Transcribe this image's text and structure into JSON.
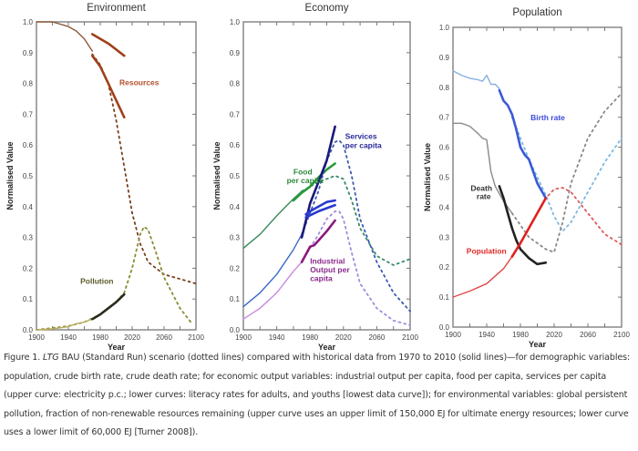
{
  "chart_data": [
    {
      "type": "line",
      "title": "Environment",
      "xlabel": "Year",
      "ylabel": "Normalised Value",
      "xlim": [
        1900,
        2100
      ],
      "ylim": [
        0,
        1.0
      ],
      "xticks": [
        "1900",
        "1940",
        "1980",
        "2020",
        "2060",
        "2100"
      ],
      "yticks": [
        "0.0",
        "0.1",
        "0.2",
        "0.3",
        "0.4",
        "0.5",
        "0.6",
        "0.7",
        "0.8",
        "0.9",
        "1.0"
      ],
      "annotations": [
        {
          "text": "Resources",
          "color": "#b3502a",
          "x": 2004,
          "y": 0.795
        },
        {
          "text": "Pollution",
          "color": "#5a5a2a",
          "x": 1955,
          "y": 0.15
        }
      ],
      "series": [
        {
          "name": "Resources model history (thin)",
          "style": "thin",
          "color": "#8a5a3a",
          "x": [
            1900,
            1920,
            1940,
            1950,
            1960,
            1970
          ],
          "y": [
            1.0,
            1.0,
            0.985,
            0.97,
            0.945,
            0.905
          ]
        },
        {
          "name": "Resources upper (150,000 EJ) model",
          "style": "dotted",
          "color": "#a05a30",
          "x": [
            1970,
            1980,
            1990,
            2000,
            2010
          ],
          "y": [
            0.96,
            0.945,
            0.93,
            0.91,
            0.89
          ]
        },
        {
          "name": "Resources lower (60,000 EJ) model",
          "style": "dotted",
          "color": "#7a4020",
          "x": [
            1970,
            1980,
            1990,
            2000,
            2010,
            2020,
            2030,
            2040,
            2060,
            2080,
            2100
          ],
          "y": [
            0.895,
            0.86,
            0.8,
            0.68,
            0.53,
            0.38,
            0.28,
            0.22,
            0.18,
            0.165,
            0.15
          ]
        },
        {
          "name": "Resources upper data",
          "style": "solid",
          "color": "#a0401a",
          "x": [
            1970,
            1980,
            1990,
            2000,
            2010
          ],
          "y": [
            0.96,
            0.945,
            0.93,
            0.91,
            0.89
          ]
        },
        {
          "name": "Resources lower data",
          "style": "solid",
          "color": "#a0401a",
          "x": [
            1970,
            1980,
            1990,
            2000,
            2010
          ],
          "y": [
            0.89,
            0.855,
            0.8,
            0.745,
            0.69
          ]
        },
        {
          "name": "Pollution model",
          "style": "dotted",
          "color": "#8a8a30",
          "x": [
            1900,
            1940,
            1960,
            1980,
            2000,
            2010,
            2020,
            2030,
            2035,
            2040,
            2050,
            2060,
            2080,
            2095
          ],
          "y": [
            0.0,
            0.012,
            0.025,
            0.05,
            0.09,
            0.12,
            0.2,
            0.31,
            0.335,
            0.325,
            0.25,
            0.17,
            0.07,
            0.02
          ]
        },
        {
          "name": "Pollution history (thin)",
          "style": "thin",
          "color": "#b9b060",
          "x": [
            1900,
            1920,
            1940,
            1950,
            1960,
            1970
          ],
          "y": [
            0.0,
            0.003,
            0.01,
            0.02,
            0.025,
            0.035
          ]
        },
        {
          "name": "Pollution data",
          "style": "solid",
          "color": "#2a2a1a",
          "x": [
            1970,
            1980,
            1990,
            2000,
            2010
          ],
          "y": [
            0.035,
            0.05,
            0.07,
            0.09,
            0.115
          ]
        }
      ]
    },
    {
      "type": "line",
      "title": "Economy",
      "xlabel": "Year",
      "ylabel": "Normalised Value",
      "xlim": [
        1900,
        2100
      ],
      "ylim": [
        0,
        1.0
      ],
      "xticks": [
        "1900",
        "1940",
        "1980",
        "2020",
        "2060",
        "2100"
      ],
      "yticks": [
        "0.0",
        "0.1",
        "0.2",
        "0.3",
        "0.4",
        "0.5",
        "0.6",
        "0.7",
        "0.8",
        "0.9",
        "1.0"
      ],
      "annotations": [
        {
          "text": "Services",
          "color": "#2a2a9a",
          "x": 2022,
          "y": 0.62
        },
        {
          "text": "per capita",
          "color": "#2a2a9a",
          "x": 2022,
          "y": 0.59
        },
        {
          "text": "Food",
          "color": "#2a8a3a",
          "x": 1960,
          "y": 0.505
        },
        {
          "text": "per capita",
          "color": "#2a8a3a",
          "x": 1952,
          "y": 0.477
        },
        {
          "text": "Industrial",
          "color": "#8a2a8a",
          "x": 1980,
          "y": 0.215
        },
        {
          "text": "Output per",
          "color": "#8a2a8a",
          "x": 1980,
          "y": 0.187
        },
        {
          "text": "capita",
          "color": "#8a2a8a",
          "x": 1980,
          "y": 0.159
        }
      ],
      "series": [
        {
          "name": "Food per capita history",
          "style": "thin",
          "color": "#3a8a5a",
          "x": [
            1900,
            1920,
            1940,
            1960,
            1970
          ],
          "y": [
            0.265,
            0.31,
            0.37,
            0.425,
            0.45
          ]
        },
        {
          "name": "Food per capita model",
          "style": "dotted",
          "color": "#3a8a6a",
          "x": [
            1970,
            1990,
            2010,
            2020,
            2030,
            2040,
            2060,
            2080,
            2100
          ],
          "y": [
            0.45,
            0.48,
            0.5,
            0.49,
            0.42,
            0.33,
            0.24,
            0.21,
            0.23
          ]
        },
        {
          "name": "Food per capita data",
          "style": "solid",
          "color": "#2a9a3a",
          "x": [
            1960,
            1970,
            1980,
            1990,
            2000,
            2010
          ],
          "y": [
            0.42,
            0.445,
            0.465,
            0.495,
            0.52,
            0.54
          ]
        },
        {
          "name": "Services per capita history",
          "style": "thin",
          "color": "#3a6ac8",
          "x": [
            1900,
            1920,
            1940,
            1960,
            1970
          ],
          "y": [
            0.075,
            0.12,
            0.18,
            0.26,
            0.31
          ]
        },
        {
          "name": "Services per capita model",
          "style": "dotted",
          "color": "#3a5ab0",
          "x": [
            1970,
            1990,
            2000,
            2010,
            2015,
            2020,
            2030,
            2040,
            2060,
            2080,
            2100
          ],
          "y": [
            0.31,
            0.45,
            0.55,
            0.61,
            0.615,
            0.6,
            0.5,
            0.36,
            0.22,
            0.12,
            0.06
          ]
        },
        {
          "name": "Services per capita data (electricity)",
          "style": "solid",
          "color": "#1a1a7a",
          "x": [
            1970,
            1980,
            1990,
            2000,
            2010
          ],
          "y": [
            0.3,
            0.41,
            0.48,
            0.55,
            0.66
          ]
        },
        {
          "name": "Services per capita data (adult literacy)",
          "style": "solid",
          "color": "#2a3ad0",
          "x": [
            1975,
            1980,
            1990,
            2000,
            2010
          ],
          "y": [
            0.375,
            0.385,
            0.4,
            0.415,
            0.42
          ]
        },
        {
          "name": "Services per capita data (youth literacy)",
          "style": "solid",
          "color": "#2a3ad0",
          "x": [
            1975,
            1980,
            1990,
            2000,
            2010
          ],
          "y": [
            0.365,
            0.372,
            0.385,
            0.395,
            0.405
          ]
        },
        {
          "name": "Industrial output per capita history",
          "style": "thin",
          "color": "#c88ae0",
          "x": [
            1900,
            1920,
            1940,
            1960,
            1970
          ],
          "y": [
            0.035,
            0.07,
            0.12,
            0.19,
            0.22
          ]
        },
        {
          "name": "Industrial output per capita model",
          "style": "dotted",
          "color": "#a08ae0",
          "x": [
            1970,
            1990,
            2000,
            2010,
            2015,
            2020,
            2030,
            2040,
            2060,
            2080,
            2100
          ],
          "y": [
            0.22,
            0.31,
            0.36,
            0.385,
            0.385,
            0.36,
            0.25,
            0.15,
            0.07,
            0.03,
            0.015
          ]
        },
        {
          "name": "Industrial output per capita data",
          "style": "solid",
          "color": "#8a1a7a",
          "x": [
            1970,
            1980,
            1985,
            1990,
            2000,
            2010
          ],
          "y": [
            0.22,
            0.27,
            0.275,
            0.29,
            0.32,
            0.355
          ]
        }
      ]
    },
    {
      "type": "line",
      "title": "Population",
      "xlabel": "Year",
      "ylabel": "Normalised Value",
      "xlim": [
        1900,
        2100
      ],
      "ylim": [
        0,
        1.0
      ],
      "xticks": [
        "1900",
        "1940",
        "1980",
        "2020",
        "2060",
        "2100"
      ],
      "yticks": [
        "0.0",
        "0.1",
        "0.2",
        "0.3",
        "0.4",
        "0.5",
        "0.6",
        "0.7",
        "0.8",
        "0.9",
        "1.0"
      ],
      "annotations": [
        {
          "text": "Birth rate",
          "color": "#3a4ad8",
          "x": 1992,
          "y": 0.69
        },
        {
          "text": "Death",
          "color": "#333333",
          "x": 1921,
          "y": 0.455
        },
        {
          "text": "rate",
          "color": "#333333",
          "x": 1928,
          "y": 0.427
        },
        {
          "text": "Population",
          "color": "#e02a2a",
          "x": 1916,
          "y": 0.245
        }
      ],
      "series": [
        {
          "name": "Birth rate history",
          "style": "thin",
          "color": "#8ab0e0",
          "x": [
            1900,
            1910,
            1920,
            1930,
            1935,
            1940,
            1945,
            1950,
            1955
          ],
          "y": [
            0.855,
            0.84,
            0.83,
            0.825,
            0.82,
            0.84,
            0.81,
            0.81,
            0.795
          ]
        },
        {
          "name": "Birth rate model",
          "style": "dotted",
          "color": "#7ab8e0",
          "x": [
            1970,
            1990,
            2010,
            2020,
            2030,
            2040,
            2060,
            2080,
            2100
          ],
          "y": [
            0.7,
            0.56,
            0.44,
            0.37,
            0.32,
            0.35,
            0.45,
            0.55,
            0.63
          ]
        },
        {
          "name": "Birth rate data",
          "style": "solid",
          "color": "#3a5ad8",
          "x": [
            1955,
            1960,
            1965,
            1970,
            1975,
            1980,
            1985,
            1990,
            2000,
            2010
          ],
          "y": [
            0.79,
            0.755,
            0.74,
            0.71,
            0.66,
            0.6,
            0.575,
            0.56,
            0.48,
            0.43
          ]
        },
        {
          "name": "Death rate history",
          "style": "thin",
          "color": "#8a8a8a",
          "x": [
            1900,
            1910,
            1920,
            1930,
            1935,
            1940,
            1945,
            1950,
            1960,
            1970
          ],
          "y": [
            0.68,
            0.68,
            0.67,
            0.645,
            0.63,
            0.625,
            0.52,
            0.47,
            0.42,
            0.38
          ]
        },
        {
          "name": "Death rate model",
          "style": "dotted",
          "color": "#888888",
          "x": [
            1970,
            1990,
            2010,
            2020,
            2030,
            2040,
            2060,
            2080,
            2100
          ],
          "y": [
            0.38,
            0.3,
            0.26,
            0.25,
            0.35,
            0.48,
            0.63,
            0.72,
            0.78
          ]
        },
        {
          "name": "Death rate data",
          "style": "solid",
          "color": "#222222",
          "x": [
            1955,
            1960,
            1965,
            1970,
            1975,
            1980,
            1990,
            2000,
            2010
          ],
          "y": [
            0.47,
            0.43,
            0.38,
            0.33,
            0.29,
            0.26,
            0.23,
            0.21,
            0.215
          ]
        },
        {
          "name": "Population history",
          "style": "thin",
          "color": "#e04a4a",
          "x": [
            1900,
            1920,
            1940,
            1960,
            1970
          ],
          "y": [
            0.1,
            0.12,
            0.145,
            0.195,
            0.235
          ]
        },
        {
          "name": "Population model",
          "style": "dotted",
          "color": "#e05a5a",
          "x": [
            1970,
            1990,
            2010,
            2020,
            2030,
            2040,
            2060,
            2080,
            2100
          ],
          "y": [
            0.235,
            0.33,
            0.43,
            0.46,
            0.465,
            0.45,
            0.38,
            0.31,
            0.275
          ]
        },
        {
          "name": "Population data",
          "style": "solid",
          "color": "#e02020",
          "x": [
            1970,
            1980,
            1990,
            2000,
            2010
          ],
          "y": [
            0.235,
            0.28,
            0.33,
            0.38,
            0.43
          ]
        }
      ]
    }
  ],
  "caption": {
    "prefix": "Figure 1. ",
    "italic": "LTG",
    "text": " BAU (Standard Run) scenario (dotted lines) compared with historical data from 1970 to 2010 (solid lines)—for demographic variables: population, crude birth rate, crude death rate; for economic output variables:  industrial output per capita, food per capita, services per capita (upper curve: electricity p.c.; lower curves: literacy rates for adults, and youths [lowest data curve]); for environmental variables: global persistent pollution, fraction of non-renewable resources remaining (upper curve uses an upper limit of 150,000 EJ for ultimate energy resources; lower curve uses a lower limit of 60,000 EJ [Turner 2008])."
  }
}
